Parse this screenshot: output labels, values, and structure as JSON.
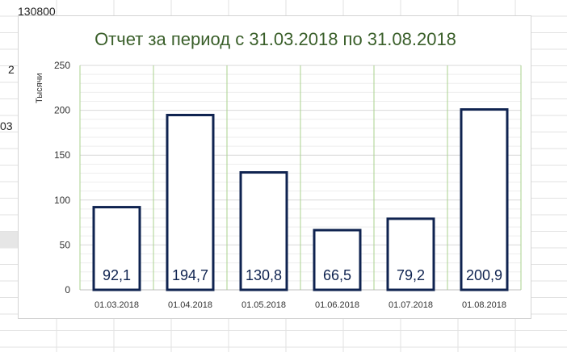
{
  "sheet": {
    "cells": [
      {
        "text": "130800",
        "col": 0,
        "row": 0
      },
      {
        "text": "2",
        "col": 0,
        "row": 4
      },
      {
        "text": "03",
        "col": 0,
        "row": 7
      }
    ]
  },
  "colors": {
    "bar_stroke": "#0f2350",
    "gridline_major": "#d9d9d9",
    "gridline_minor": "#eeeeee",
    "category_separator": "#a9d18e",
    "title": "#3a5f2a"
  },
  "chart_data": {
    "type": "bar",
    "title": "Отчет за период  с 31.03.2018 по 31.08.2018",
    "ylabel": "Тысячи",
    "xlabel": "",
    "categories": [
      "01.03.2018",
      "01.04.2018",
      "01.05.2018",
      "01.06.2018",
      "01.07.2018",
      "01.08.2018"
    ],
    "values": [
      92.1,
      194.7,
      130.8,
      66.5,
      79.2,
      200.9
    ],
    "data_labels": [
      "92,1",
      "194,7",
      "130,8",
      "66,5",
      "79,2",
      "200,9"
    ],
    "yticks": [
      0,
      50,
      100,
      150,
      200,
      250
    ],
    "ylim": [
      0,
      250
    ],
    "grid": true,
    "legend": "none"
  }
}
